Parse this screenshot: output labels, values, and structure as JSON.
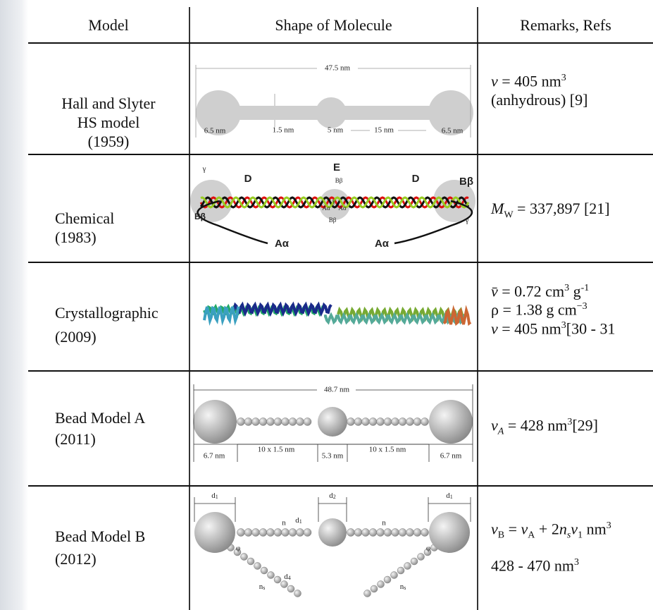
{
  "header": {
    "model": "Model",
    "shape": "Shape of Molecule",
    "remarks": "Remarks, Refs"
  },
  "rows": [
    {
      "model": [
        "Hall and Slyter",
        "HS model",
        "(1959)"
      ],
      "labels": [
        "47.5 nm",
        "6.5 nm",
        "1.5 nm",
        "5 nm",
        "15 nm",
        "6.5 nm"
      ],
      "remarks": [
        [
          "v",
          " = 405 nm",
          "3"
        ],
        [
          "(anhydrous) [9]"
        ]
      ]
    },
    {
      "model": [
        "Chemical",
        "(1983)"
      ],
      "labels": [
        "γ",
        "D",
        "E",
        "Bβ",
        "D",
        "Bβ",
        "Bβ",
        "Aα",
        "γ",
        "Aα",
        "Bβ",
        "γ",
        "Aα",
        "Aα"
      ],
      "remarks": [
        [
          "M",
          "W",
          " = 337,897 [21]"
        ]
      ]
    },
    {
      "model": [
        "Crystallographic",
        "(2009)"
      ],
      "remarks": [
        [
          "v̄",
          " = 0.72 cm",
          "3",
          " g",
          "-1"
        ],
        [
          "ρ = 1.38 g cm",
          "−3"
        ],
        [
          "v",
          " = 405 nm",
          "3",
          "[30 - 31"
        ]
      ]
    },
    {
      "model": [
        "Bead Model A",
        "(2011)"
      ],
      "labels": [
        "48.7 nm",
        "6.7 nm",
        "10 x 1.5 nm",
        "5.3 nm",
        "10 x 1.5 nm",
        "6.7 nm"
      ],
      "remarks": [
        [
          "v",
          "A",
          " = 428 nm",
          "3",
          "[29]"
        ]
      ]
    },
    {
      "model": [
        "Bead Model B",
        "(2012)"
      ],
      "labels": [
        [
          "d",
          "1"
        ],
        [
          "d",
          "2"
        ],
        [
          "d",
          "1"
        ],
        [
          "d",
          "1"
        ],
        "n",
        "n",
        "φ",
        "φ",
        [
          "n",
          "s"
        ],
        [
          "d",
          "4"
        ],
        [
          "n",
          "s"
        ]
      ],
      "remarks": [
        [
          "v",
          "B",
          " = ",
          "v",
          "A",
          " + 2",
          "n",
          "s",
          "v",
          "1",
          "  nm",
          "3"
        ],
        [
          "428 - 470 nm",
          "3"
        ]
      ]
    }
  ]
}
